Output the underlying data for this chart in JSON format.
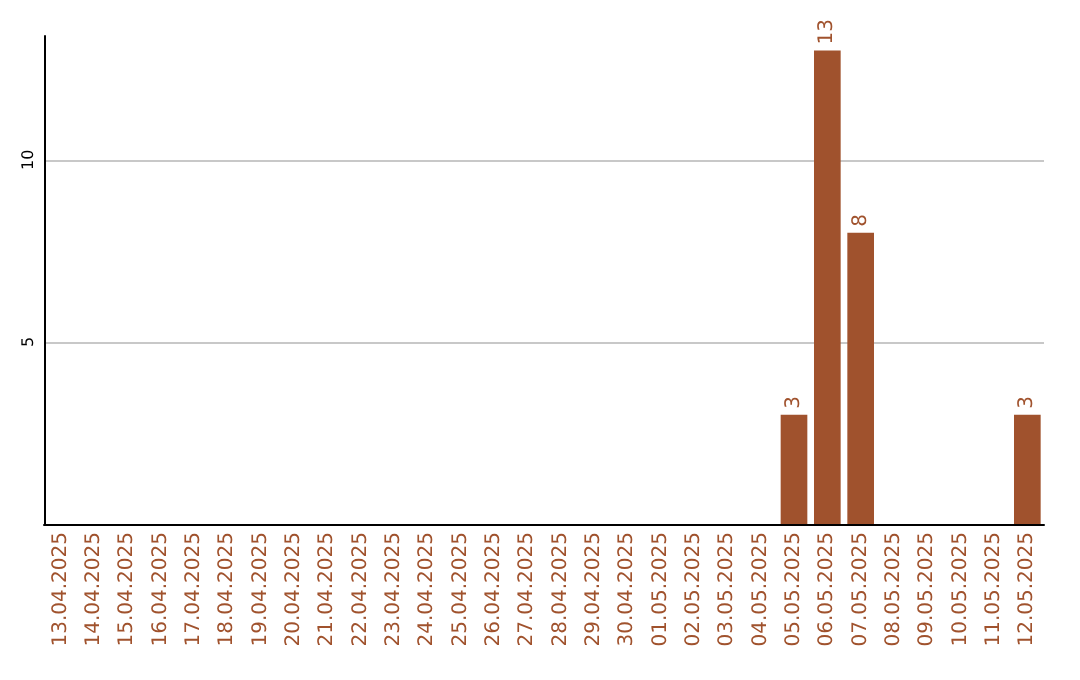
{
  "chart_data": {
    "type": "bar",
    "categories": [
      "13.04.2025",
      "14.04.2025",
      "15.04.2025",
      "16.04.2025",
      "17.04.2025",
      "18.04.2025",
      "19.04.2025",
      "20.04.2025",
      "21.04.2025",
      "22.04.2025",
      "23.04.2025",
      "24.04.2025",
      "25.04.2025",
      "26.04.2025",
      "27.04.2025",
      "28.04.2025",
      "29.04.2025",
      "30.04.2025",
      "01.05.2025",
      "02.05.2025",
      "03.05.2025",
      "04.05.2025",
      "05.05.2025",
      "06.05.2025",
      "07.05.2025",
      "08.05.2025",
      "09.05.2025",
      "10.05.2025",
      "11.05.2025",
      "12.05.2025"
    ],
    "values": [
      0,
      0,
      0,
      0,
      0,
      0,
      0,
      0,
      0,
      0,
      0,
      0,
      0,
      0,
      0,
      0,
      0,
      0,
      0,
      0,
      0,
      0,
      3,
      13,
      8,
      0,
      0,
      0,
      0,
      3
    ],
    "value_labels": [
      null,
      null,
      null,
      null,
      null,
      null,
      null,
      null,
      null,
      null,
      null,
      null,
      null,
      null,
      null,
      null,
      null,
      null,
      null,
      null,
      null,
      null,
      "3",
      "13",
      "8",
      null,
      null,
      null,
      null,
      "3"
    ],
    "color": "#a0522d",
    "ylim": [
      0,
      13.4
    ],
    "yticks": [
      5,
      10
    ],
    "grid": "y"
  }
}
